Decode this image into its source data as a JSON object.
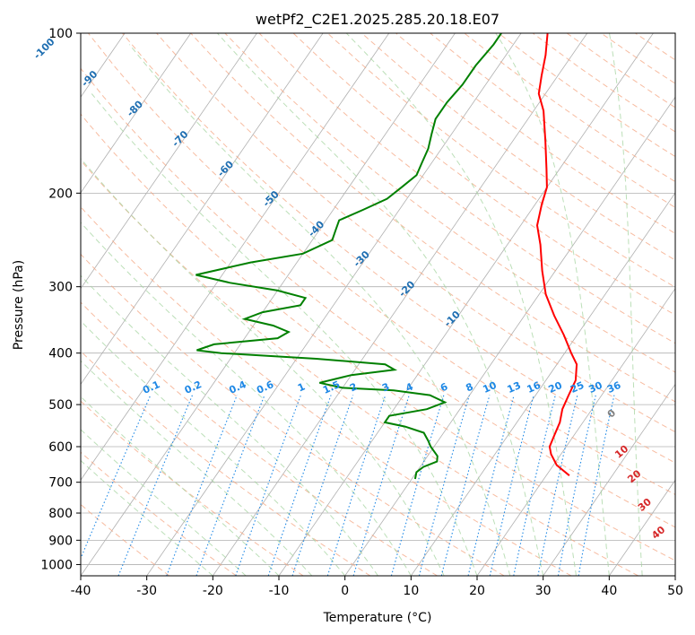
{
  "chart_data": {
    "type": "skew-t",
    "title": "wetPf2_C2E1.2025.285.20.18.E07",
    "xlabel": "Temperature (°C)",
    "ylabel": "Pressure (hPa)",
    "xlim": [
      -40,
      50
    ],
    "ylim": [
      1050,
      100
    ],
    "x_ticks": [
      -40,
      -30,
      -20,
      -10,
      0,
      10,
      20,
      30,
      40,
      50
    ],
    "y_ticks": [
      1000,
      900,
      800,
      700,
      600,
      500,
      400,
      300,
      200,
      100
    ],
    "temperature": [
      [
        680,
        23.5
      ],
      [
        650,
        20.5
      ],
      [
        620,
        18.5
      ],
      [
        600,
        17.5
      ],
      [
        570,
        17.0
      ],
      [
        540,
        16.5
      ],
      [
        510,
        15.5
      ],
      [
        480,
        15.0
      ],
      [
        450,
        14.5
      ],
      [
        420,
        13.0
      ],
      [
        400,
        11.0
      ],
      [
        370,
        8.0
      ],
      [
        340,
        4.5
      ],
      [
        310,
        1.0
      ],
      [
        280,
        -2.0
      ],
      [
        250,
        -5.0
      ],
      [
        230,
        -7.5
      ],
      [
        210,
        -9.0
      ],
      [
        195,
        -10.0
      ],
      [
        180,
        -12.0
      ],
      [
        160,
        -15.0
      ],
      [
        140,
        -18.5
      ],
      [
        130,
        -21.0
      ],
      [
        120,
        -22.5
      ],
      [
        110,
        -24.0
      ],
      [
        100,
        -26.0
      ]
    ],
    "dewpoint": [
      [
        690,
        0.5
      ],
      [
        670,
        0.0
      ],
      [
        655,
        0.5
      ],
      [
        640,
        2.0
      ],
      [
        625,
        1.5
      ],
      [
        600,
        -0.5
      ],
      [
        585,
        -1.5
      ],
      [
        565,
        -3.0
      ],
      [
        550,
        -6.5
      ],
      [
        540,
        -10.0
      ],
      [
        525,
        -10.0
      ],
      [
        510,
        -5.0
      ],
      [
        495,
        -3.0
      ],
      [
        480,
        -6.0
      ],
      [
        470,
        -12.0
      ],
      [
        465,
        -20.0
      ],
      [
        455,
        -24.0
      ],
      [
        440,
        -20.0
      ],
      [
        430,
        -14.0
      ],
      [
        420,
        -16.0
      ],
      [
        410,
        -27.0
      ],
      [
        400,
        -42.0
      ],
      [
        395,
        -46.0
      ],
      [
        385,
        -44.0
      ],
      [
        375,
        -35.0
      ],
      [
        365,
        -34.0
      ],
      [
        355,
        -37.0
      ],
      [
        345,
        -42.0
      ],
      [
        335,
        -40.0
      ],
      [
        325,
        -35.0
      ],
      [
        315,
        -35.0
      ],
      [
        305,
        -40.0
      ],
      [
        295,
        -48.0
      ],
      [
        285,
        -54.0
      ],
      [
        270,
        -47.0
      ],
      [
        260,
        -40.0
      ],
      [
        245,
        -37.0
      ],
      [
        235,
        -37.5
      ],
      [
        225,
        -38.0
      ],
      [
        215,
        -35.5
      ],
      [
        205,
        -33.0
      ],
      [
        195,
        -32.0
      ],
      [
        185,
        -31.0
      ],
      [
        175,
        -31.5
      ],
      [
        165,
        -32.0
      ],
      [
        155,
        -33.0
      ],
      [
        145,
        -34.0
      ],
      [
        135,
        -34.0
      ],
      [
        125,
        -33.5
      ],
      [
        115,
        -33.5
      ],
      [
        105,
        -33.0
      ],
      [
        100,
        -33.0
      ]
    ],
    "dry_adiabat_labels": [
      -100,
      -90,
      -80,
      -70,
      -60,
      -50,
      -40,
      -30,
      -20,
      -10,
      0
    ],
    "moist_adiabat_labels": [
      10,
      20,
      30,
      40
    ],
    "mixing_ratio_labels": [
      "0.1",
      "0.2",
      "0.4",
      "0.6",
      "1",
      "1.5",
      "2",
      "3",
      "4",
      "6",
      "8",
      "10",
      "13",
      "16",
      "20",
      "25",
      "30",
      "36"
    ],
    "mixing_ratio_values": [
      0.1,
      0.2,
      0.4,
      0.6,
      1,
      1.5,
      2,
      3,
      4,
      6,
      8,
      10,
      13,
      16,
      20,
      25,
      30,
      36
    ],
    "colors": {
      "temperature": "#ff0000",
      "dewpoint": "#008000",
      "isotherm": "#b0b0b0",
      "isobar": "#b0b0b0",
      "dry_adiabat": "#f4a582",
      "moist_adiabat": "#a6d4a0",
      "mixing_ratio": "#1e88e5",
      "extra": "#d2b48c"
    }
  }
}
